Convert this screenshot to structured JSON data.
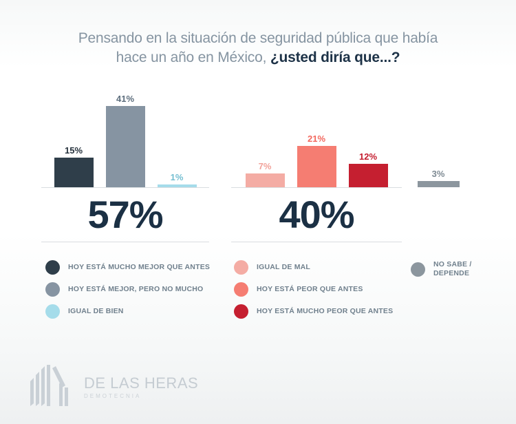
{
  "title": {
    "line1": "Pensando en la situación de seguridad pública que había",
    "line2_regular": "hace un año en México, ",
    "line2_bold": "¿usted diría que...?"
  },
  "chart_data": {
    "type": "bar",
    "title": "Pensando en la situación de seguridad pública que había hace un año en México, ¿usted diría que...?",
    "unit": "%",
    "ylim": [
      0,
      45
    ],
    "grid": false,
    "legend_position": "bottom",
    "categories": [
      "HOY ESTÁ MUCHO MEJOR QUE ANTES",
      "HOY ESTÁ MEJOR, PERO NO MUCHO",
      "IGUAL DE BIEN",
      "IGUAL DE MAL",
      "HOY ESTÁ PEOR QUE ANTES",
      "HOY ESTÁ MUCHO PEOR QUE ANTES",
      "NO SABE / DEPENDE"
    ],
    "values": [
      15,
      41,
      1,
      7,
      21,
      12,
      3
    ],
    "groups": [
      {
        "name": "mejor",
        "total_value": 57,
        "total_display": "57%",
        "bars": [
          {
            "label": "HOY ESTÁ MUCHO MEJOR QUE ANTES",
            "value": 15,
            "display": "15%",
            "color": "#2f3e4a",
            "label_color": "#26323d"
          },
          {
            "label": "HOY ESTÁ MEJOR, PERO NO MUCHO",
            "value": 41,
            "display": "41%",
            "color": "#8694a2",
            "label_color": "#5d6e7d"
          },
          {
            "label": "IGUAL DE BIEN",
            "value": 1,
            "display": "1%",
            "color": "#a5dcea",
            "label_color": "#74bed1"
          }
        ]
      },
      {
        "name": "peor",
        "total_value": 40,
        "total_display": "40%",
        "bars": [
          {
            "label": "IGUAL DE MAL",
            "value": 7,
            "display": "7%",
            "color": "#f4aca4",
            "label_color": "#f2a199"
          },
          {
            "label": "HOY ESTÁ PEOR QUE ANTES",
            "value": 21,
            "display": "21%",
            "color": "#f57d72",
            "label_color": "#f3685e"
          },
          {
            "label": "HOY ESTÁ MUCHO PEOR QUE ANTES",
            "value": 12,
            "display": "12%",
            "color": "#c51f30",
            "label_color": "#c41b2d"
          }
        ]
      },
      {
        "name": "no-sabe",
        "total_value": 3,
        "total_display": "",
        "bars": [
          {
            "label": "NO SABE / DEPENDE",
            "value": 3,
            "display": "3%",
            "color": "#8c969e",
            "label_color": "#7e8a93"
          }
        ]
      }
    ]
  },
  "legend": {
    "columns": [
      {
        "items": [
          {
            "label": "HOY ESTÁ MUCHO MEJOR QUE ANTES",
            "color": "#2f3e4a"
          },
          {
            "label": "HOY ESTÁ MEJOR, PERO NO MUCHO",
            "color": "#8694a2"
          },
          {
            "label": "IGUAL DE BIEN",
            "color": "#a5dcea"
          }
        ]
      },
      {
        "items": [
          {
            "label": "IGUAL DE MAL",
            "color": "#f4aca4"
          },
          {
            "label": "HOY ESTÁ PEOR QUE ANTES",
            "color": "#f57d72"
          },
          {
            "label": "HOY ESTÁ MUCHO PEOR QUE ANTES",
            "color": "#c51f30"
          }
        ]
      },
      {
        "items": [
          {
            "label_line1": "NO SABE /",
            "label_line2": "DEPENDE",
            "color": "#8c969e"
          }
        ]
      }
    ]
  },
  "footer": {
    "brand": "DE LAS HERAS",
    "brand_sub": "DEMOTECNIA"
  },
  "colors": {
    "accent_dark_navy": "#1b3044",
    "title_gray": "#8594a1",
    "rule_gray": "#d9dde0",
    "legend_text": "#70808d",
    "logo_gray": "#c9d0d6"
  }
}
